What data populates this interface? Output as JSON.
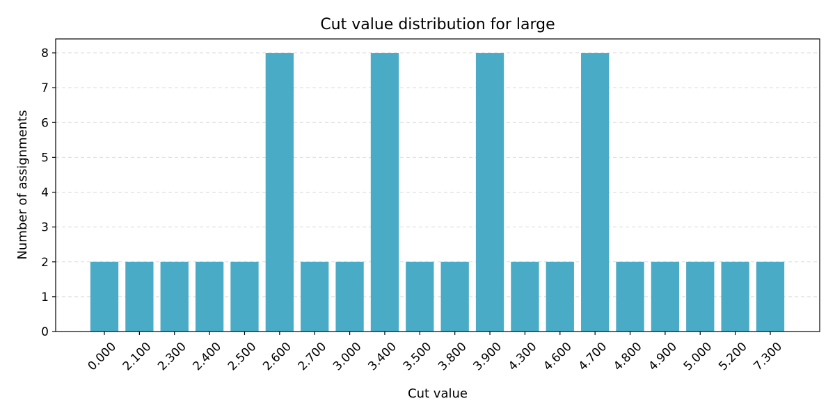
{
  "chart_data": {
    "type": "bar",
    "title": "Cut value distribution for large",
    "xlabel": "Cut value",
    "ylabel": "Number of assignments",
    "categories": [
      "0.000",
      "2.100",
      "2.300",
      "2.400",
      "2.500",
      "2.600",
      "2.700",
      "3.000",
      "3.400",
      "3.500",
      "3.800",
      "3.900",
      "4.300",
      "4.600",
      "4.700",
      "4.800",
      "4.900",
      "5.000",
      "5.200",
      "7.300"
    ],
    "values": [
      2,
      2,
      2,
      2,
      2,
      8,
      2,
      2,
      8,
      2,
      2,
      8,
      2,
      2,
      8,
      2,
      2,
      2,
      2,
      2
    ],
    "ylim": [
      0,
      8.4
    ],
    "yticks": [
      0,
      1,
      2,
      3,
      4,
      5,
      6,
      7,
      8
    ],
    "grid": "y-dashed",
    "bar_color": "#4aabc6"
  }
}
